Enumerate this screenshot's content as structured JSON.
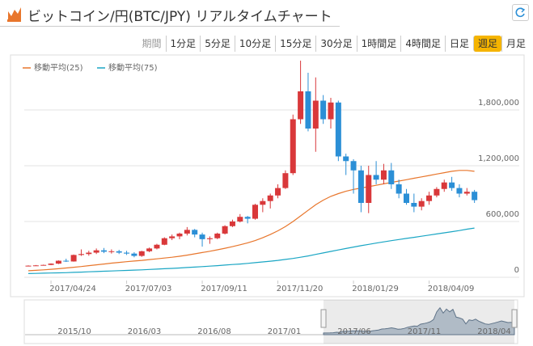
{
  "header": {
    "title": "ビットコイン/円(BTC/JPY) リアルタイムチャート"
  },
  "periods": {
    "items": [
      "期間",
      "1分足",
      "5分足",
      "10分足",
      "15分足",
      "30分足",
      "1時間足",
      "4時間足",
      "日足",
      "週足",
      "月足"
    ],
    "selected": 9
  },
  "chart_data": {
    "type": "candlestick",
    "categories": [
      null,
      null,
      null,
      "2017/04/24",
      null,
      null,
      null,
      null,
      null,
      null,
      null,
      null,
      null,
      "2017/07/03",
      null,
      null,
      null,
      null,
      null,
      null,
      null,
      null,
      null,
      "2017/09/11",
      null,
      null,
      null,
      null,
      null,
      null,
      null,
      null,
      null,
      "2017/11/20",
      null,
      null,
      null,
      null,
      null,
      null,
      null,
      null,
      null,
      "2018/01/29",
      null,
      null,
      null,
      null,
      null,
      null,
      null,
      null,
      null,
      "2018/04/09",
      null,
      null,
      null,
      null,
      null,
      null
    ],
    "ohlc": [
      [
        120000,
        128000,
        118000,
        125000
      ],
      [
        125000,
        132000,
        122000,
        128000
      ],
      [
        128000,
        136000,
        126000,
        133000
      ],
      [
        133000,
        150000,
        130000,
        147000
      ],
      [
        147000,
        182000,
        142000,
        178000
      ],
      [
        178000,
        200000,
        165000,
        170000
      ],
      [
        170000,
        245000,
        168000,
        240000
      ],
      [
        240000,
        300000,
        230000,
        250000
      ],
      [
        250000,
        285000,
        232000,
        265000
      ],
      [
        265000,
        310000,
        250000,
        290000
      ],
      [
        290000,
        315000,
        260000,
        275000
      ],
      [
        275000,
        300000,
        255000,
        280000
      ],
      [
        280000,
        295000,
        250000,
        265000
      ],
      [
        265000,
        285000,
        240000,
        255000
      ],
      [
        255000,
        270000,
        215000,
        230000
      ],
      [
        230000,
        285000,
        220000,
        280000
      ],
      [
        280000,
        320000,
        270000,
        310000
      ],
      [
        310000,
        360000,
        300000,
        350000
      ],
      [
        350000,
        430000,
        345000,
        420000
      ],
      [
        420000,
        460000,
        400000,
        440000
      ],
      [
        440000,
        480000,
        410000,
        470000
      ],
      [
        470000,
        540000,
        450000,
        510000
      ],
      [
        510000,
        520000,
        430000,
        460000
      ],
      [
        460000,
        480000,
        330000,
        410000
      ],
      [
        410000,
        440000,
        360000,
        420000
      ],
      [
        420000,
        480000,
        410000,
        470000
      ],
      [
        470000,
        560000,
        460000,
        550000
      ],
      [
        550000,
        620000,
        540000,
        600000
      ],
      [
        600000,
        680000,
        590000,
        650000
      ],
      [
        650000,
        660000,
        580000,
        630000
      ],
      [
        630000,
        790000,
        620000,
        780000
      ],
      [
        780000,
        850000,
        700000,
        820000
      ],
      [
        820000,
        900000,
        740000,
        880000
      ],
      [
        880000,
        1000000,
        850000,
        960000
      ],
      [
        960000,
        1150000,
        950000,
        1120000
      ],
      [
        1120000,
        1750000,
        1100000,
        1700000
      ],
      [
        1700000,
        2330000,
        1650000,
        2000000
      ],
      [
        2000000,
        2200000,
        1570000,
        1600000
      ],
      [
        1600000,
        2150000,
        1350000,
        1900000
      ],
      [
        1900000,
        1960000,
        1650000,
        1700000
      ],
      [
        1700000,
        1930000,
        1600000,
        1880000
      ],
      [
        1880000,
        1900000,
        1250000,
        1300000
      ],
      [
        1300000,
        1330000,
        1100000,
        1250000
      ],
      [
        1250000,
        1270000,
        900000,
        1150000
      ],
      [
        1150000,
        1200000,
        700000,
        800000
      ],
      [
        800000,
        1200000,
        690000,
        1100000
      ],
      [
        1100000,
        1250000,
        1000000,
        1050000
      ],
      [
        1050000,
        1220000,
        1000000,
        1150000
      ],
      [
        1150000,
        1230000,
        950000,
        1000000
      ],
      [
        1000000,
        1050000,
        850000,
        900000
      ],
      [
        900000,
        950000,
        780000,
        800000
      ],
      [
        800000,
        900000,
        700000,
        760000
      ],
      [
        760000,
        850000,
        720000,
        820000
      ],
      [
        820000,
        920000,
        780000,
        880000
      ],
      [
        880000,
        970000,
        860000,
        950000
      ],
      [
        950000,
        1050000,
        920000,
        1020000
      ],
      [
        1020000,
        1080000,
        930000,
        960000
      ],
      [
        960000,
        1000000,
        860000,
        900000
      ],
      [
        900000,
        960000,
        880000,
        920000
      ],
      [
        920000,
        940000,
        800000,
        830000
      ]
    ],
    "up_color": "#d9383a",
    "down_color": "#2b8fd6",
    "series": [
      {
        "name": "移動平均(25)",
        "color": "#e8762c",
        "values": [
          70000,
          75000,
          80000,
          86000,
          92000,
          100000,
          108000,
          116000,
          125000,
          134000,
          143000,
          152000,
          160000,
          168000,
          175000,
          182000,
          190000,
          198000,
          207000,
          216000,
          226000,
          238000,
          252000,
          266000,
          280000,
          296000,
          312000,
          330000,
          350000,
          370000,
          395000,
          425000,
          460000,
          500000,
          545000,
          600000,
          660000,
          720000,
          780000,
          830000,
          870000,
          900000,
          925000,
          945000,
          960000,
          975000,
          990000,
          1005000,
          1020000,
          1035000,
          1050000,
          1065000,
          1080000,
          1095000,
          1110000,
          1125000,
          1140000,
          1150000,
          1150000,
          1140000
        ]
      },
      {
        "name": "移動平均(75)",
        "color": "#1aa6c4",
        "values": [
          40000,
          42000,
          44000,
          46000,
          48000,
          50000,
          53000,
          56000,
          59000,
          62000,
          65000,
          68000,
          71000,
          74000,
          77000,
          80000,
          84000,
          88000,
          92000,
          96000,
          100000,
          105000,
          110000,
          115000,
          120000,
          125000,
          131000,
          137000,
          143000,
          150000,
          157000,
          165000,
          173000,
          182000,
          192000,
          203000,
          216000,
          230000,
          246000,
          262000,
          278000,
          294000,
          310000,
          325000,
          340000,
          354000,
          368000,
          381000,
          394000,
          406000,
          418000,
          430000,
          442000,
          454000,
          466000,
          478000,
          490000,
          503000,
          517000,
          530000
        ]
      }
    ],
    "ylim": [
      0,
      2400000
    ],
    "yticks": [
      0,
      {
        "value": 600000,
        "label": "600,000"
      },
      {
        "value": 1200000,
        "label": "1,200,000"
      },
      {
        "value": 1800000,
        "label": "1,800,000"
      }
    ],
    "grid": true
  },
  "navigator": {
    "labels": [
      "2015/10",
      "2016/03",
      "2016/08",
      "2017/01",
      "2017/06",
      "2017/11",
      "2018/04"
    ]
  }
}
